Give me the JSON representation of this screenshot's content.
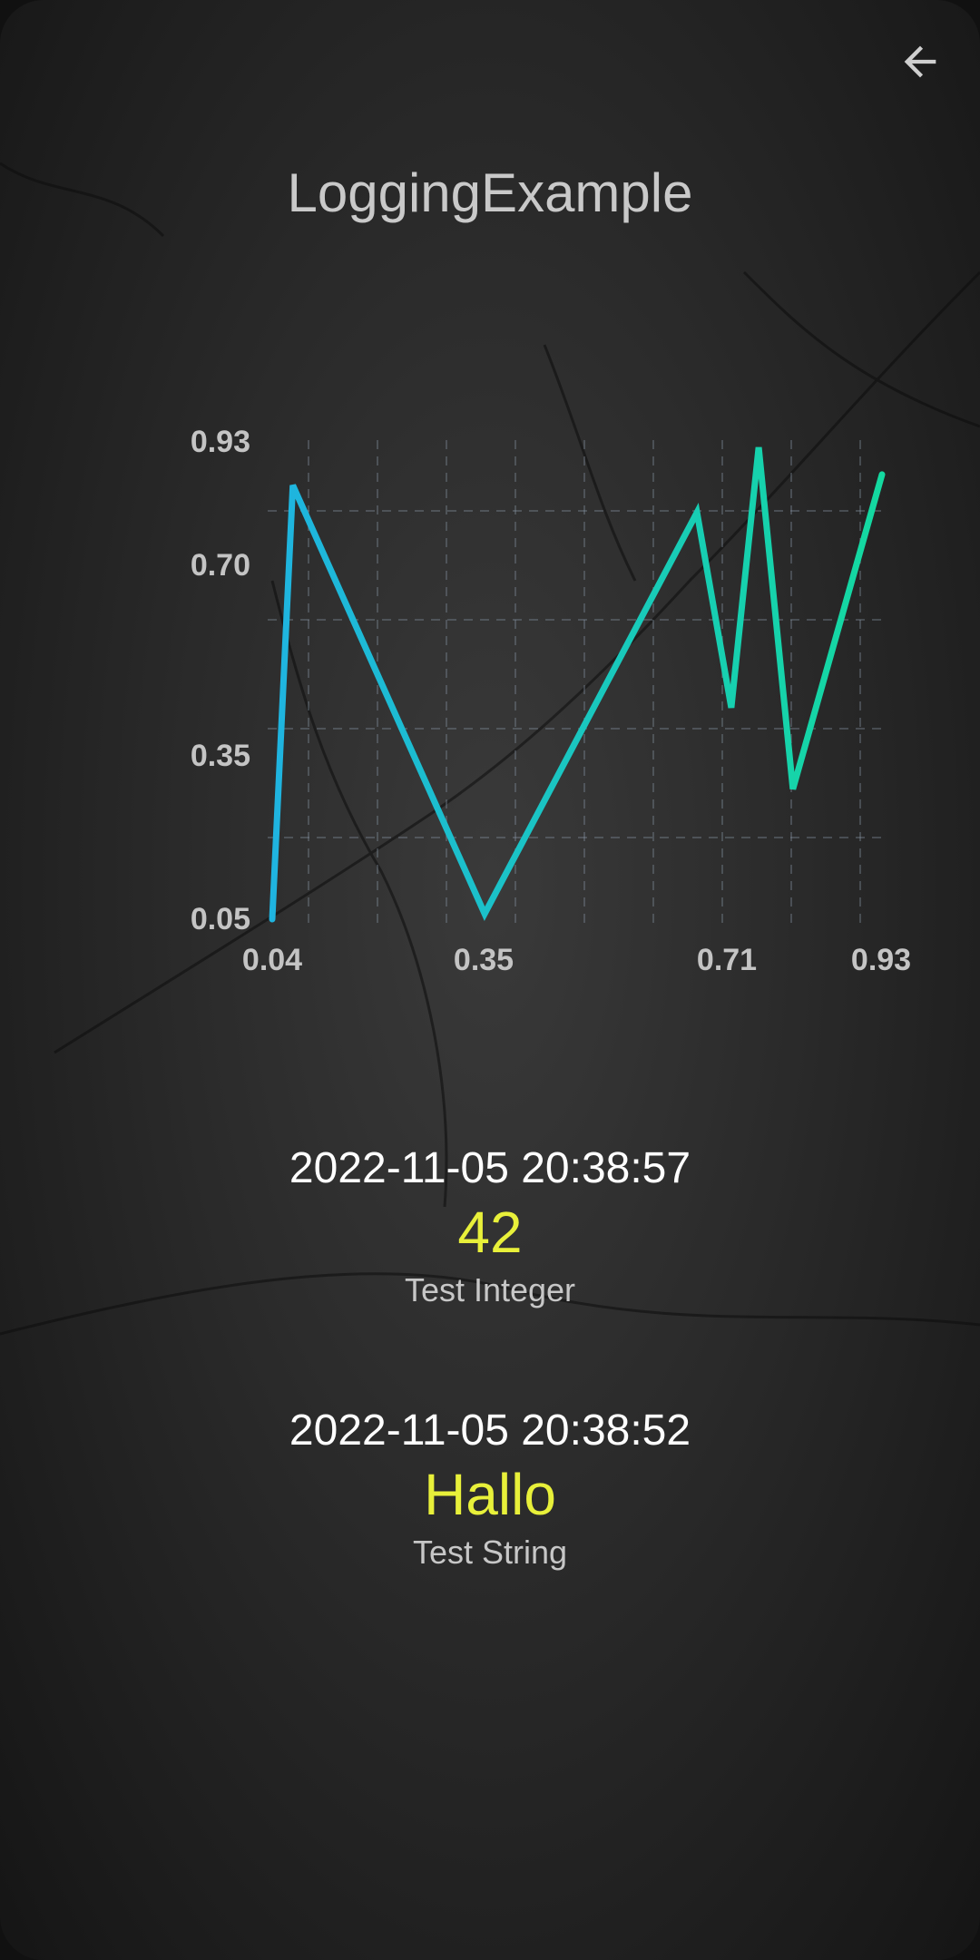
{
  "app": {
    "title": "LoggingExample"
  },
  "header": {
    "back_icon": "arrow-left-icon"
  },
  "colors": {
    "accent_value": "#e8f03a",
    "line_start": "#1fb4e0",
    "line_end": "#14d9a0"
  },
  "chart_data": {
    "type": "line",
    "title": "",
    "xlabel": "",
    "ylabel": "",
    "x_ticks": [
      "0.04",
      "0.35",
      "0.71",
      "0.93"
    ],
    "y_ticks": [
      "0.93",
      "0.70",
      "0.35",
      "0.05"
    ],
    "xlim": [
      0.04,
      0.93
    ],
    "ylim": [
      0.05,
      0.93
    ],
    "grid": true,
    "series": [
      {
        "x": [
          0.04,
          0.07,
          0.35,
          0.66,
          0.71,
          0.72,
          0.75,
          0.8,
          0.93
        ],
        "y": [
          0.05,
          0.85,
          0.06,
          0.8,
          0.44,
          0.56,
          0.92,
          0.29,
          0.87
        ]
      }
    ]
  },
  "entries": [
    {
      "timestamp": "2022-11-05 20:38:57",
      "value": "42",
      "label": "Test Integer"
    },
    {
      "timestamp": "2022-11-05 20:38:52",
      "value": "Hallo",
      "label": "Test String"
    }
  ]
}
